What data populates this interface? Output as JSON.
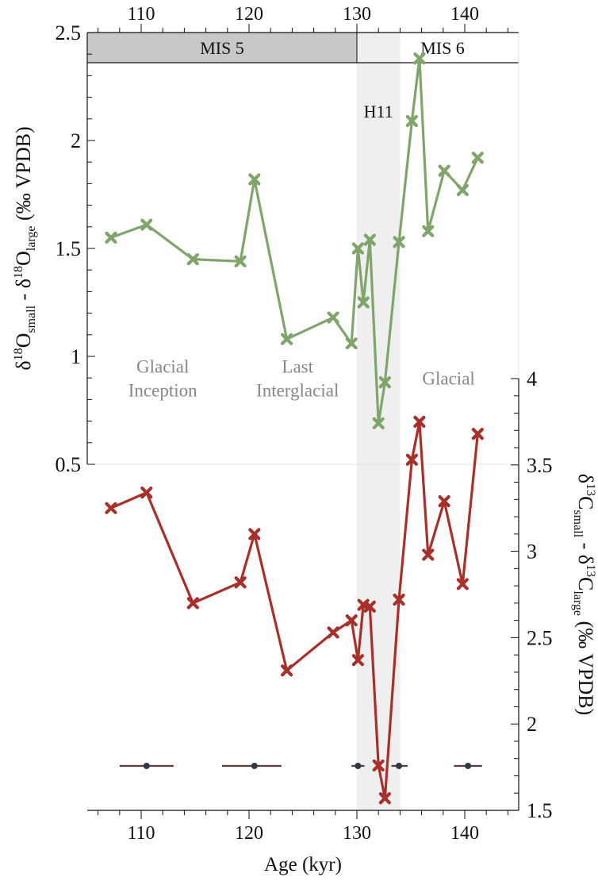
{
  "chart_data": {
    "type": "line",
    "xlabel": "Age (kyr)",
    "xlim": [
      105,
      145
    ],
    "x_ticks": [
      "110",
      "120",
      "130",
      "140"
    ],
    "top_ticks": [
      "110",
      "120",
      "130",
      "140"
    ],
    "ylabel_left": {
      "pre": "δ",
      "sup1": "18",
      "mid1": "O",
      "sub1": "small",
      "mid2": " - δ",
      "sup2": "18",
      "mid3": "O",
      "sub2": "large",
      "post": " (‰ VPDB)"
    },
    "ylabel_right": {
      "pre": "δ",
      "sup1": "13",
      "mid1": "C",
      "sub1": "small",
      "mid2": " - δ",
      "sup2": "13",
      "mid3": "C",
      "sub2": "large",
      "post": " (‰ VPDB)"
    },
    "ylim_left": [
      0.5,
      2.5
    ],
    "ylim_right": [
      1.5,
      4
    ],
    "y_ticks_left": [
      "0.5",
      "1",
      "1.5",
      "2",
      "2.5"
    ],
    "y_ticks_right": [
      "1.5",
      "2",
      "2.5",
      "3",
      "3.5",
      "4"
    ],
    "grid": false,
    "colors": {
      "oxygen": "#7fa56a",
      "carbon": "#a8302b",
      "mis5": "#c8c8c8",
      "h11": "#efefef",
      "annotation": "#888888",
      "dating": "#2f3a44"
    },
    "mis_bar": [
      {
        "label": "MIS 5",
        "from": 105,
        "to": 130,
        "filled": true
      },
      {
        "label": "MIS 6",
        "from": 130,
        "to": 145,
        "filled": false
      }
    ],
    "h11_band": {
      "label": "H11",
      "from": 130,
      "to": 134
    },
    "annotations": [
      {
        "lines": [
          "Glacial",
          "Inception"
        ],
        "x": 112,
        "y": 0.925
      },
      {
        "lines": [
          "Last",
          "Interglacial"
        ],
        "x": 124.5,
        "y": 0.925
      },
      {
        "lines": [
          "Glacial"
        ],
        "x": 138.5,
        "y": 0.87
      }
    ],
    "series": [
      {
        "axis": "left",
        "x": [
          107.2,
          110.5,
          114.8,
          119.2,
          120.5,
          123.5,
          127.8,
          129.5,
          130.1,
          130.6,
          131.2,
          132.0,
          132.6,
          133.9,
          135.1,
          135.8,
          136.6,
          138.1,
          139.8,
          141.2
        ],
        "values": [
          1.55,
          1.61,
          1.45,
          1.44,
          1.82,
          1.08,
          1.18,
          1.06,
          1.5,
          1.25,
          1.54,
          0.69,
          0.88,
          1.53,
          2.09,
          2.38,
          1.58,
          1.86,
          1.77,
          1.92
        ]
      },
      {
        "axis": "right",
        "x": [
          107.2,
          110.5,
          114.8,
          119.2,
          120.5,
          123.5,
          127.8,
          129.5,
          130.1,
          130.6,
          131.2,
          132.0,
          132.6,
          133.9,
          135.1,
          135.8,
          136.6,
          138.1,
          139.8,
          141.2
        ],
        "values": [
          3.25,
          3.34,
          2.7,
          2.82,
          3.1,
          2.31,
          2.53,
          2.6,
          2.37,
          2.69,
          2.68,
          1.76,
          1.57,
          2.72,
          3.53,
          3.75,
          2.98,
          3.29,
          2.81,
          3.68
        ]
      }
    ],
    "dating_points": [
      {
        "x": 110.5,
        "xmin": 108.0,
        "xmax": 113.0
      },
      {
        "x": 120.5,
        "xmin": 117.5,
        "xmax": 123.0
      },
      {
        "x": 130.1,
        "xmin": 129.5,
        "xmax": 130.7
      },
      {
        "x": 133.9,
        "xmin": 133.2,
        "xmax": 134.7
      },
      {
        "x": 140.3,
        "xmin": 139.0,
        "xmax": 141.6
      }
    ]
  }
}
